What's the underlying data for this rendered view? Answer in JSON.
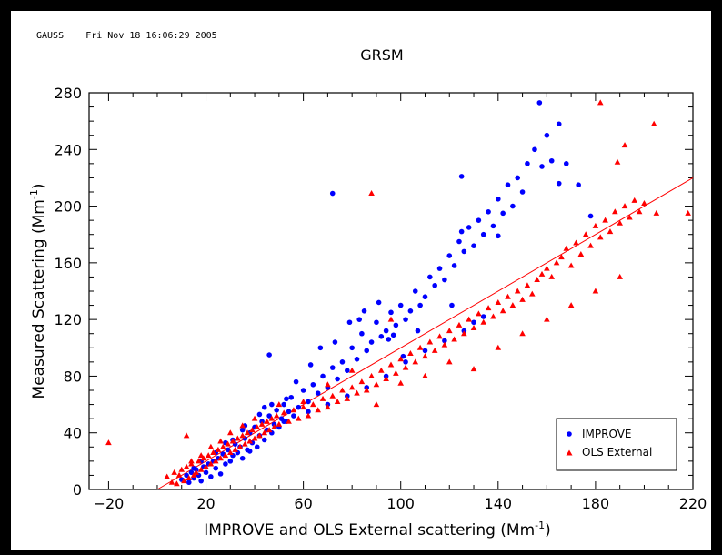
{
  "header": {
    "app": "GAUSS",
    "timestamp": "Fri Nov 18 16:06:29 2005"
  },
  "chart_data": {
    "type": "scatter",
    "title": "GRSM",
    "xlabel": "IMPROVE and OLS External scattering (Mm",
    "xlabel_sup": "-1",
    "xlabel_end": ")",
    "ylabel": "Measured Scattering (Mm",
    "ylabel_sup": "-1",
    "ylabel_end": ")",
    "xlim": [
      -28,
      220
    ],
    "ylim": [
      0,
      280
    ],
    "xticks": [
      -20,
      20,
      60,
      100,
      140,
      180,
      220
    ],
    "yticks": [
      0,
      40,
      80,
      120,
      160,
      200,
      240,
      280
    ],
    "legend_position": "bottom-right",
    "fit_line": {
      "color": "#ff0000",
      "x": [
        0,
        220
      ],
      "y": [
        0,
        220
      ]
    },
    "series": [
      {
        "name": "IMPROVE",
        "marker": "circle",
        "color": "#0000ff",
        "points": [
          [
            10,
            7
          ],
          [
            12,
            10
          ],
          [
            13,
            5
          ],
          [
            14,
            12
          ],
          [
            15,
            8
          ],
          [
            16,
            14
          ],
          [
            17,
            10
          ],
          [
            18,
            6
          ],
          [
            19,
            16
          ],
          [
            20,
            12
          ],
          [
            21,
            18
          ],
          [
            22,
            9
          ],
          [
            23,
            20
          ],
          [
            24,
            15
          ],
          [
            25,
            22
          ],
          [
            26,
            11
          ],
          [
            27,
            25
          ],
          [
            28,
            18
          ],
          [
            29,
            28
          ],
          [
            30,
            20
          ],
          [
            31,
            24
          ],
          [
            32,
            32
          ],
          [
            33,
            26
          ],
          [
            34,
            30
          ],
          [
            35,
            22
          ],
          [
            36,
            36
          ],
          [
            37,
            28
          ],
          [
            38,
            40
          ],
          [
            39,
            33
          ],
          [
            40,
            44
          ],
          [
            41,
            30
          ],
          [
            42,
            38
          ],
          [
            43,
            48
          ],
          [
            44,
            35
          ],
          [
            45,
            42
          ],
          [
            46,
            52
          ],
          [
            47,
            40
          ],
          [
            48,
            46
          ],
          [
            49,
            56
          ],
          [
            50,
            44
          ],
          [
            51,
            50
          ],
          [
            52,
            60
          ],
          [
            53,
            48
          ],
          [
            54,
            55
          ],
          [
            55,
            65
          ],
          [
            56,
            52
          ],
          [
            58,
            58
          ],
          [
            60,
            70
          ],
          [
            62,
            62
          ],
          [
            64,
            74
          ],
          [
            66,
            68
          ],
          [
            68,
            80
          ],
          [
            70,
            72
          ],
          [
            72,
            86
          ],
          [
            74,
            78
          ],
          [
            76,
            90
          ],
          [
            78,
            84
          ],
          [
            80,
            100
          ],
          [
            82,
            92
          ],
          [
            84,
            110
          ],
          [
            86,
            98
          ],
          [
            88,
            104
          ],
          [
            90,
            118
          ],
          [
            92,
            108
          ],
          [
            94,
            112
          ],
          [
            96,
            125
          ],
          [
            98,
            116
          ],
          [
            100,
            130
          ],
          [
            102,
            120
          ],
          [
            104,
            126
          ],
          [
            106,
            140
          ],
          [
            108,
            130
          ],
          [
            110,
            136
          ],
          [
            112,
            150
          ],
          [
            114,
            144
          ],
          [
            116,
            156
          ],
          [
            118,
            148
          ],
          [
            120,
            165
          ],
          [
            122,
            158
          ],
          [
            124,
            175
          ],
          [
            126,
            168
          ],
          [
            128,
            185
          ],
          [
            130,
            172
          ],
          [
            132,
            190
          ],
          [
            134,
            180
          ],
          [
            136,
            196
          ],
          [
            138,
            186
          ],
          [
            140,
            205
          ],
          [
            142,
            195
          ],
          [
            144,
            215
          ],
          [
            146,
            200
          ],
          [
            148,
            220
          ],
          [
            150,
            210
          ],
          [
            152,
            230
          ],
          [
            155,
            240
          ],
          [
            158,
            228
          ],
          [
            160,
            250
          ],
          [
            162,
            232
          ],
          [
            165,
            258
          ],
          [
            157,
            273
          ],
          [
            125,
            221
          ],
          [
            72,
            209
          ],
          [
            140,
            179
          ],
          [
            125,
            182
          ],
          [
            165,
            216
          ],
          [
            168,
            230
          ],
          [
            178,
            193
          ],
          [
            173,
            215
          ],
          [
            121,
            130
          ],
          [
            97,
            109
          ],
          [
            46,
            95
          ],
          [
            83,
            120
          ],
          [
            35,
            42
          ],
          [
            44,
            58
          ],
          [
            28,
            33
          ],
          [
            38,
            27
          ],
          [
            52,
            48
          ],
          [
            62,
            55
          ],
          [
            70,
            60
          ],
          [
            78,
            66
          ],
          [
            86,
            72
          ],
          [
            94,
            80
          ],
          [
            102,
            90
          ],
          [
            110,
            98
          ],
          [
            118,
            105
          ],
          [
            126,
            112
          ],
          [
            130,
            118
          ],
          [
            134,
            122
          ],
          [
            15,
            15
          ],
          [
            18,
            20
          ],
          [
            24,
            26
          ],
          [
            31,
            35
          ],
          [
            36,
            45
          ],
          [
            42,
            53
          ],
          [
            47,
            60
          ],
          [
            53,
            64
          ],
          [
            57,
            76
          ],
          [
            63,
            88
          ],
          [
            67,
            100
          ],
          [
            73,
            104
          ],
          [
            79,
            118
          ],
          [
            85,
            126
          ],
          [
            91,
            132
          ],
          [
            95,
            106
          ],
          [
            101,
            94
          ],
          [
            107,
            112
          ]
        ]
      },
      {
        "name": "OLS External",
        "marker": "triangle",
        "color": "#ff0000",
        "points": [
          [
            -20,
            33
          ],
          [
            4,
            9
          ],
          [
            6,
            5
          ],
          [
            7,
            12
          ],
          [
            8,
            4
          ],
          [
            9,
            10
          ],
          [
            10,
            14
          ],
          [
            11,
            6
          ],
          [
            12,
            16
          ],
          [
            13,
            8
          ],
          [
            14,
            18
          ],
          [
            15,
            10
          ],
          [
            16,
            12
          ],
          [
            17,
            20
          ],
          [
            18,
            14
          ],
          [
            19,
            22
          ],
          [
            20,
            16
          ],
          [
            21,
            24
          ],
          [
            22,
            18
          ],
          [
            23,
            26
          ],
          [
            24,
            20
          ],
          [
            25,
            28
          ],
          [
            26,
            22
          ],
          [
            27,
            30
          ],
          [
            28,
            24
          ],
          [
            29,
            32
          ],
          [
            30,
            26
          ],
          [
            31,
            34
          ],
          [
            32,
            28
          ],
          [
            33,
            36
          ],
          [
            34,
            30
          ],
          [
            35,
            38
          ],
          [
            36,
            32
          ],
          [
            37,
            40
          ],
          [
            38,
            34
          ],
          [
            39,
            42
          ],
          [
            40,
            36
          ],
          [
            41,
            44
          ],
          [
            42,
            38
          ],
          [
            43,
            46
          ],
          [
            44,
            40
          ],
          [
            45,
            48
          ],
          [
            46,
            42
          ],
          [
            47,
            50
          ],
          [
            48,
            44
          ],
          [
            49,
            52
          ],
          [
            50,
            46
          ],
          [
            52,
            54
          ],
          [
            54,
            48
          ],
          [
            56,
            56
          ],
          [
            58,
            50
          ],
          [
            60,
            58
          ],
          [
            62,
            52
          ],
          [
            64,
            60
          ],
          [
            66,
            56
          ],
          [
            68,
            64
          ],
          [
            70,
            58
          ],
          [
            72,
            66
          ],
          [
            74,
            62
          ],
          [
            76,
            70
          ],
          [
            78,
            64
          ],
          [
            80,
            72
          ],
          [
            82,
            68
          ],
          [
            84,
            76
          ],
          [
            86,
            70
          ],
          [
            88,
            80
          ],
          [
            90,
            74
          ],
          [
            92,
            84
          ],
          [
            94,
            78
          ],
          [
            96,
            88
          ],
          [
            98,
            82
          ],
          [
            100,
            92
          ],
          [
            102,
            86
          ],
          [
            104,
            96
          ],
          [
            106,
            90
          ],
          [
            108,
            100
          ],
          [
            110,
            94
          ],
          [
            112,
            104
          ],
          [
            114,
            98
          ],
          [
            116,
            108
          ],
          [
            118,
            102
          ],
          [
            120,
            112
          ],
          [
            122,
            106
          ],
          [
            124,
            116
          ],
          [
            126,
            110
          ],
          [
            128,
            120
          ],
          [
            130,
            114
          ],
          [
            132,
            124
          ],
          [
            134,
            118
          ],
          [
            136,
            128
          ],
          [
            138,
            122
          ],
          [
            140,
            132
          ],
          [
            142,
            126
          ],
          [
            144,
            136
          ],
          [
            146,
            130
          ],
          [
            148,
            140
          ],
          [
            150,
            134
          ],
          [
            152,
            144
          ],
          [
            154,
            138
          ],
          [
            156,
            148
          ],
          [
            158,
            152
          ],
          [
            160,
            156
          ],
          [
            162,
            150
          ],
          [
            164,
            160
          ],
          [
            166,
            164
          ],
          [
            168,
            170
          ],
          [
            170,
            158
          ],
          [
            172,
            174
          ],
          [
            174,
            166
          ],
          [
            176,
            180
          ],
          [
            178,
            172
          ],
          [
            180,
            186
          ],
          [
            182,
            178
          ],
          [
            184,
            190
          ],
          [
            186,
            182
          ],
          [
            188,
            196
          ],
          [
            190,
            188
          ],
          [
            192,
            200
          ],
          [
            194,
            192
          ],
          [
            196,
            204
          ],
          [
            198,
            196
          ],
          [
            200,
            202
          ],
          [
            204,
            258
          ],
          [
            182,
            273
          ],
          [
            192,
            243
          ],
          [
            189,
            231
          ],
          [
            205,
            195
          ],
          [
            218,
            195
          ],
          [
            88,
            209
          ],
          [
            45,
            48
          ],
          [
            12,
            38
          ],
          [
            96,
            120
          ],
          [
            90,
            60
          ],
          [
            100,
            75
          ],
          [
            110,
            80
          ],
          [
            120,
            90
          ],
          [
            130,
            85
          ],
          [
            140,
            100
          ],
          [
            150,
            110
          ],
          [
            160,
            120
          ],
          [
            170,
            130
          ],
          [
            180,
            140
          ],
          [
            190,
            150
          ],
          [
            30,
            40
          ],
          [
            35,
            45
          ],
          [
            40,
            50
          ],
          [
            50,
            60
          ],
          [
            60,
            62
          ],
          [
            70,
            74
          ],
          [
            80,
            84
          ],
          [
            22,
            30
          ],
          [
            26,
            34
          ],
          [
            18,
            24
          ],
          [
            14,
            20
          ]
        ]
      }
    ]
  }
}
